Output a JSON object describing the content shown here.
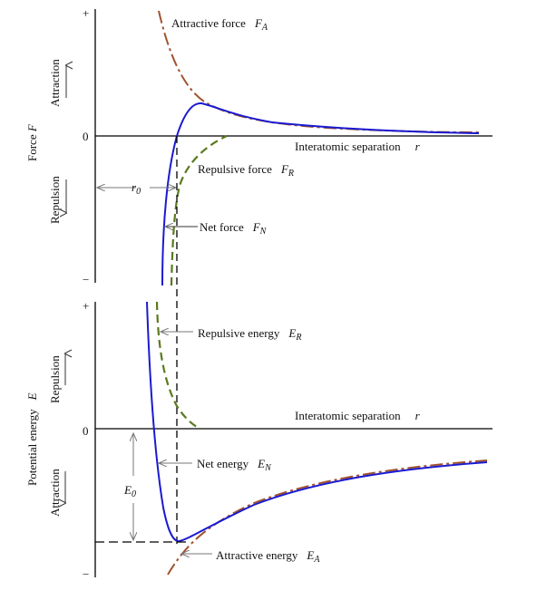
{
  "colors": {
    "net": "#1a1ad0",
    "attractive": "#a0522d",
    "repulsive": "#5a7a1e",
    "axis": "#000000",
    "pointer": "#777777"
  },
  "force_panel": {
    "y_axis_label": "Force",
    "y_axis_symbol": "F",
    "tick_plus": "+",
    "tick_zero": "0",
    "tick_minus": "−",
    "upper_region": "Attraction",
    "lower_region": "Repulsion",
    "x_axis_label": "Interatomic separation",
    "x_axis_symbol": "r",
    "attractive_label": "Attractive force",
    "attractive_symbol": "F",
    "attractive_sub": "A",
    "repulsive_label": "Repulsive force",
    "repulsive_symbol": "F",
    "repulsive_sub": "R",
    "net_label": "Net force",
    "net_symbol": "F",
    "net_sub": "N",
    "r0_symbol": "r",
    "r0_sub": "0"
  },
  "energy_panel": {
    "y_axis_label": "Potential energy",
    "y_axis_symbol": "E",
    "tick_plus": "+",
    "tick_zero": "0",
    "tick_minus": "−",
    "upper_region": "Repulsion",
    "lower_region": "Attraction",
    "x_axis_label": "Interatomic separation",
    "x_axis_symbol": "r",
    "repulsive_label": "Repulsive energy",
    "repulsive_symbol": "E",
    "repulsive_sub": "R",
    "net_label": "Net energy",
    "net_symbol": "E",
    "net_sub": "N",
    "attractive_label": "Attractive energy",
    "attractive_symbol": "E",
    "attractive_sub": "A",
    "e0_symbol": "E",
    "e0_sub": "0"
  }
}
